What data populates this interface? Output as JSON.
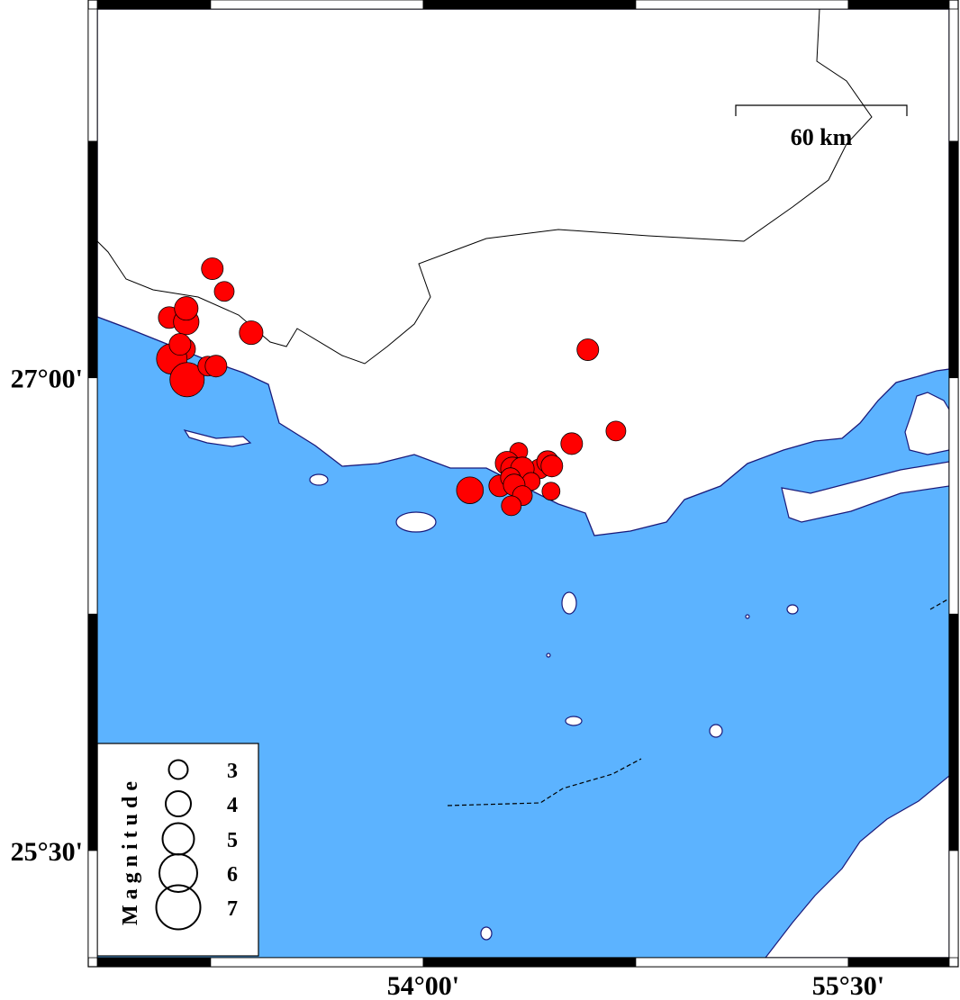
{
  "map": {
    "colors": {
      "sea": "#5cb3ff",
      "land": "#ffffff",
      "coast": "#1a1a7a",
      "event": "#ff0000",
      "border": "#000000"
    },
    "extent": {
      "lon": [
        52.85,
        55.856
      ],
      "lat": [
        25.16,
        28.17
      ]
    },
    "lat_labels": [
      {
        "value": 27.0,
        "text": "27°00'"
      },
      {
        "value": 25.5,
        "text": "25°30'"
      }
    ],
    "lon_labels": [
      {
        "value": 54.0,
        "text": "54°00'"
      },
      {
        "value": 55.5,
        "text": "55°30'"
      }
    ],
    "scale_bar": {
      "label": "60 km"
    },
    "legend": {
      "title": "Magnitude",
      "magnitudes": [
        {
          "value": 3,
          "text": "3"
        },
        {
          "value": 4,
          "text": "4"
        },
        {
          "value": 5,
          "text": "5"
        },
        {
          "value": 6,
          "text": "6"
        },
        {
          "value": 7,
          "text": "7"
        }
      ]
    },
    "events": [
      {
        "lon": 53.256,
        "lat": 27.346,
        "mag": 3.3
      },
      {
        "lon": 53.298,
        "lat": 27.274,
        "mag": 3.0
      },
      {
        "lon": 53.104,
        "lat": 27.191,
        "mag": 3.3
      },
      {
        "lon": 53.164,
        "lat": 27.177,
        "mag": 3.9
      },
      {
        "lon": 53.164,
        "lat": 27.22,
        "mag": 3.6
      },
      {
        "lon": 53.393,
        "lat": 27.143,
        "mag": 3.6
      },
      {
        "lon": 53.158,
        "lat": 27.091,
        "mag": 3.3
      },
      {
        "lon": 53.113,
        "lat": 27.06,
        "mag": 4.7
      },
      {
        "lon": 53.167,
        "lat": 26.994,
        "mag": 5.3
      },
      {
        "lon": 53.142,
        "lat": 27.106,
        "mag": 3.3
      },
      {
        "lon": 53.24,
        "lat": 27.037,
        "mag": 3.0
      },
      {
        "lon": 53.269,
        "lat": 27.037,
        "mag": 3.3
      },
      {
        "lon": 54.581,
        "lat": 27.089,
        "mag": 3.3
      },
      {
        "lon": 54.68,
        "lat": 26.831,
        "mag": 3.0
      },
      {
        "lon": 54.524,
        "lat": 26.791,
        "mag": 3.3
      },
      {
        "lon": 54.337,
        "lat": 26.766,
        "mag": 2.7
      },
      {
        "lon": 54.165,
        "lat": 26.643,
        "mag": 4.1
      },
      {
        "lon": 54.296,
        "lat": 26.729,
        "mag": 3.6
      },
      {
        "lon": 54.315,
        "lat": 26.711,
        "mag": 3.6
      },
      {
        "lon": 54.41,
        "lat": 26.711,
        "mag": 3.0
      },
      {
        "lon": 54.439,
        "lat": 26.734,
        "mag": 3.3
      },
      {
        "lon": 54.454,
        "lat": 26.72,
        "mag": 3.3
      },
      {
        "lon": 54.35,
        "lat": 26.711,
        "mag": 3.6
      },
      {
        "lon": 54.27,
        "lat": 26.657,
        "mag": 3.3
      },
      {
        "lon": 54.308,
        "lat": 26.683,
        "mag": 3.0
      },
      {
        "lon": 54.381,
        "lat": 26.671,
        "mag": 2.7
      },
      {
        "lon": 54.321,
        "lat": 26.66,
        "mag": 3.3
      },
      {
        "lon": 54.35,
        "lat": 26.626,
        "mag": 3.0
      },
      {
        "lon": 54.311,
        "lat": 26.594,
        "mag": 3.0
      },
      {
        "lon": 54.451,
        "lat": 26.64,
        "mag": 2.7
      }
    ]
  }
}
